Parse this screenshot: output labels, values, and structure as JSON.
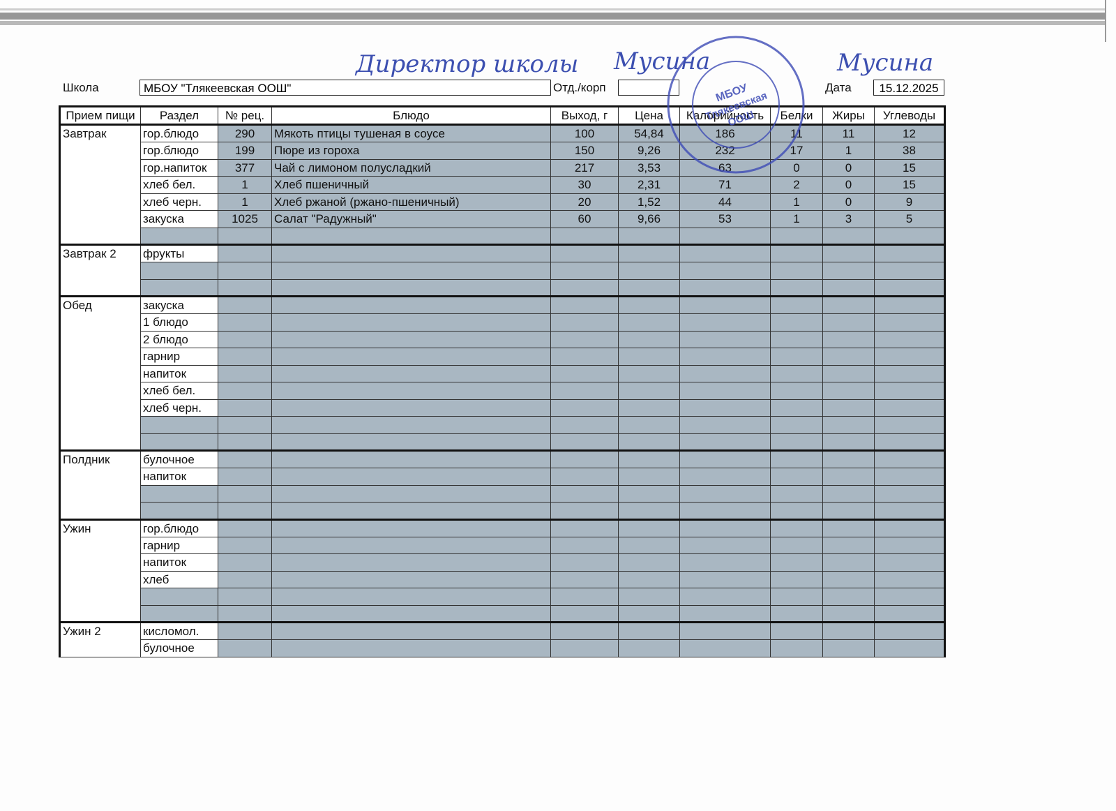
{
  "note": {
    "line1": "Директор школы",
    "line2": "Мусина",
    "line3": "Мусина"
  },
  "stamp": {
    "line1": "МБОУ",
    "line2": "Тлякеевская",
    "line3": "ООШ"
  },
  "header": {
    "school_label": "Школа",
    "school": "МБОУ \"Тлякеевская ООШ\"",
    "dept_label": "Отд./корп",
    "date_label": "Дата",
    "date": "15.12.2025"
  },
  "table": {
    "columns": [
      "Прием пищи",
      "Раздел",
      "№ рец.",
      "Блюдо",
      "Выход, г",
      "Цена",
      "Калорийность",
      "Белки",
      "Жиры",
      "Углеводы"
    ],
    "groups": [
      {
        "meal": "Завтрак",
        "rows": [
          [
            "гор.блюдо",
            "290",
            "Мякоть птицы тушеная в соусе",
            "100",
            "54,84",
            "186",
            "11",
            "11",
            "12"
          ],
          [
            "гор.блюдо",
            "199",
            "Пюре из гороха",
            "150",
            "9,26",
            "232",
            "17",
            "1",
            "38"
          ],
          [
            "гор.напиток",
            "377",
            "Чай с лимоном полусладкий",
            "217",
            "3,53",
            "63",
            "0",
            "0",
            "15"
          ],
          [
            "хлеб бел.",
            "1",
            "Хлеб пшеничный",
            "30",
            "2,31",
            "71",
            "2",
            "0",
            "15"
          ],
          [
            "хлеб черн.",
            "1",
            "Хлеб ржаной (ржано-пшеничный)",
            "20",
            "1,52",
            "44",
            "1",
            "0",
            "9"
          ],
          [
            "закуска",
            "1025",
            "Салат \"Радужный\"",
            "60",
            "9,66",
            "53",
            "1",
            "3",
            "5"
          ],
          [
            null,
            null,
            null,
            null,
            null,
            null,
            null,
            null,
            null
          ]
        ]
      },
      {
        "meal": "Завтрак 2",
        "rows": [
          [
            "фрукты",
            null,
            null,
            null,
            null,
            null,
            null,
            null,
            null
          ],
          [
            null,
            null,
            null,
            null,
            null,
            null,
            null,
            null,
            null
          ],
          [
            null,
            null,
            null,
            null,
            null,
            null,
            null,
            null,
            null
          ]
        ]
      },
      {
        "meal": "Обед",
        "rows": [
          [
            "закуска",
            null,
            null,
            null,
            null,
            null,
            null,
            null,
            null
          ],
          [
            "1 блюдо",
            null,
            null,
            null,
            null,
            null,
            null,
            null,
            null
          ],
          [
            "2 блюдо",
            null,
            null,
            null,
            null,
            null,
            null,
            null,
            null
          ],
          [
            "гарнир",
            null,
            null,
            null,
            null,
            null,
            null,
            null,
            null
          ],
          [
            "напиток",
            null,
            null,
            null,
            null,
            null,
            null,
            null,
            null
          ],
          [
            "хлеб бел.",
            null,
            null,
            null,
            null,
            null,
            null,
            null,
            null
          ],
          [
            "хлеб черн.",
            null,
            null,
            null,
            null,
            null,
            null,
            null,
            null
          ],
          [
            null,
            null,
            null,
            null,
            null,
            null,
            null,
            null,
            null
          ],
          [
            null,
            null,
            null,
            null,
            null,
            null,
            null,
            null,
            null
          ]
        ]
      },
      {
        "meal": "Полдник",
        "rows": [
          [
            "булочное",
            null,
            null,
            null,
            null,
            null,
            null,
            null,
            null
          ],
          [
            "напиток",
            null,
            null,
            null,
            null,
            null,
            null,
            null,
            null
          ],
          [
            null,
            null,
            null,
            null,
            null,
            null,
            null,
            null,
            null
          ],
          [
            null,
            null,
            null,
            null,
            null,
            null,
            null,
            null,
            null
          ]
        ]
      },
      {
        "meal": "Ужин",
        "rows": [
          [
            "гор.блюдо",
            null,
            null,
            null,
            null,
            null,
            null,
            null,
            null
          ],
          [
            "гарнир",
            null,
            null,
            null,
            null,
            null,
            null,
            null,
            null
          ],
          [
            "напиток",
            null,
            null,
            null,
            null,
            null,
            null,
            null,
            null
          ],
          [
            "хлеб",
            null,
            null,
            null,
            null,
            null,
            null,
            null,
            null
          ],
          [
            null,
            null,
            null,
            null,
            null,
            null,
            null,
            null,
            null
          ],
          [
            null,
            null,
            null,
            null,
            null,
            null,
            null,
            null,
            null
          ]
        ]
      },
      {
        "meal": "Ужин 2",
        "rows": [
          [
            "кисломол.",
            null,
            null,
            null,
            null,
            null,
            null,
            null,
            null
          ],
          [
            "булочное",
            null,
            null,
            null,
            null,
            null,
            null,
            null,
            null
          ]
        ]
      }
    ]
  }
}
